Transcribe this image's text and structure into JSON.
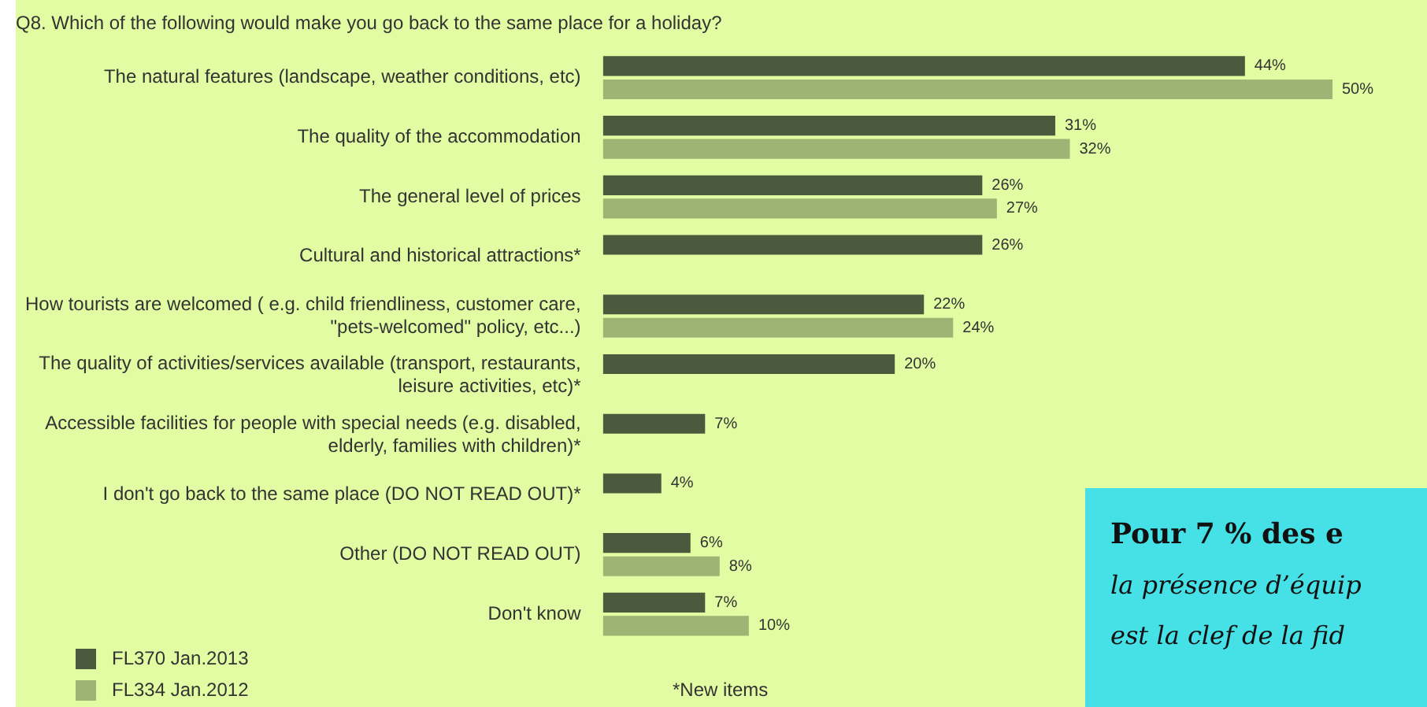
{
  "chart_data": {
    "type": "bar",
    "orientation": "horizontal",
    "title": "Q8. Which of the following would make you go back to the same place for a holiday?",
    "categories": [
      "The natural features (landscape, weather conditions, etc)",
      "The quality of the accommodation",
      "The general level of prices",
      "Cultural and historical attractions*",
      "How tourists are welcomed ( e.g. child friendliness, customer care, \"pets-welcomed\" policy, etc...)",
      "The quality of activities/services available (transport, restaurants, leisure activities, etc)*",
      "Accessible facilities for people with special needs (e.g. disabled, elderly, families with children)*",
      "I don't go back to the same place (DO NOT READ OUT)*",
      "Other (DO NOT READ OUT)",
      "Don't know"
    ],
    "series": [
      {
        "name": "FL370 Jan.2013",
        "color": "#4b5a3c",
        "values": [
          44,
          31,
          26,
          26,
          22,
          20,
          7,
          4,
          6,
          7
        ],
        "value_labels": [
          "44%",
          "31%",
          "26%",
          "26%",
          "22%",
          "20%",
          "7%",
          "4%",
          "6%",
          "7%"
        ]
      },
      {
        "name": "FL334 Jan.2012",
        "color": "#9db574",
        "values": [
          50,
          32,
          27,
          null,
          24,
          null,
          null,
          null,
          8,
          10
        ],
        "value_labels": [
          "50%",
          "32%",
          "27%",
          null,
          "24%",
          null,
          null,
          null,
          "8%",
          "10%"
        ]
      }
    ],
    "legend": "bottom left",
    "annotations": [
      "*New items",
      "Pour 7 % des e",
      "la présence d’équip",
      "est la clef de la fid"
    ]
  }
}
